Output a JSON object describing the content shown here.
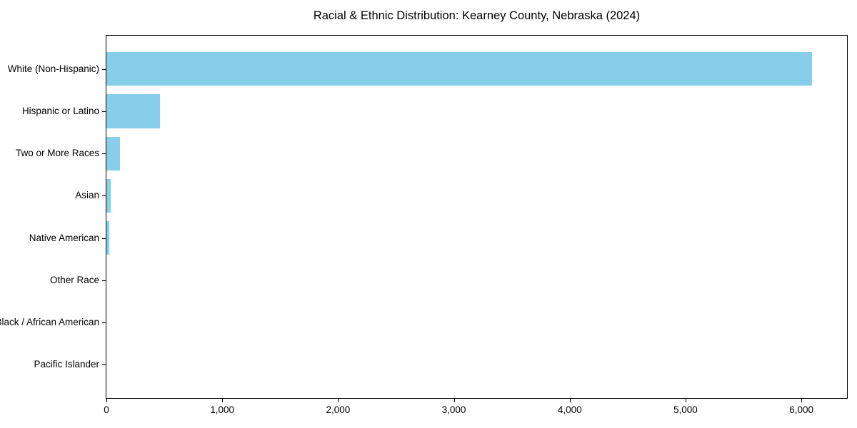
{
  "title": "Racial & Ethnic Distribution: Kearney County, Nebraska (2024)",
  "chart_data": {
    "type": "bar",
    "orientation": "horizontal",
    "title": "Racial & Ethnic Distribution: Kearney County, Nebraska (2024)",
    "xlabel": "",
    "ylabel": "",
    "categories": [
      "White (Non-Hispanic)",
      "Hispanic or Latino",
      "Two or More Races",
      "Asian",
      "Native American",
      "Other Race",
      "Black / African American",
      "Pacific Islander"
    ],
    "values": [
      6090,
      460,
      115,
      40,
      25,
      0,
      0,
      0
    ],
    "xlim": [
      0,
      6394
    ],
    "x_ticks": [
      0,
      1000,
      2000,
      3000,
      4000,
      5000,
      6000
    ],
    "x_tick_labels": [
      "0",
      "1,000",
      "2,000",
      "3,000",
      "4,000",
      "5,000",
      "6,000"
    ],
    "bar_color": "#87CEEB",
    "grid": false,
    "legend_position": "none",
    "category_axis": "left",
    "bars_sorted_descending": true
  },
  "colors": {
    "bar": "#87CEEB",
    "axis": "#000000",
    "text": "#000000",
    "background": "#ffffff"
  }
}
